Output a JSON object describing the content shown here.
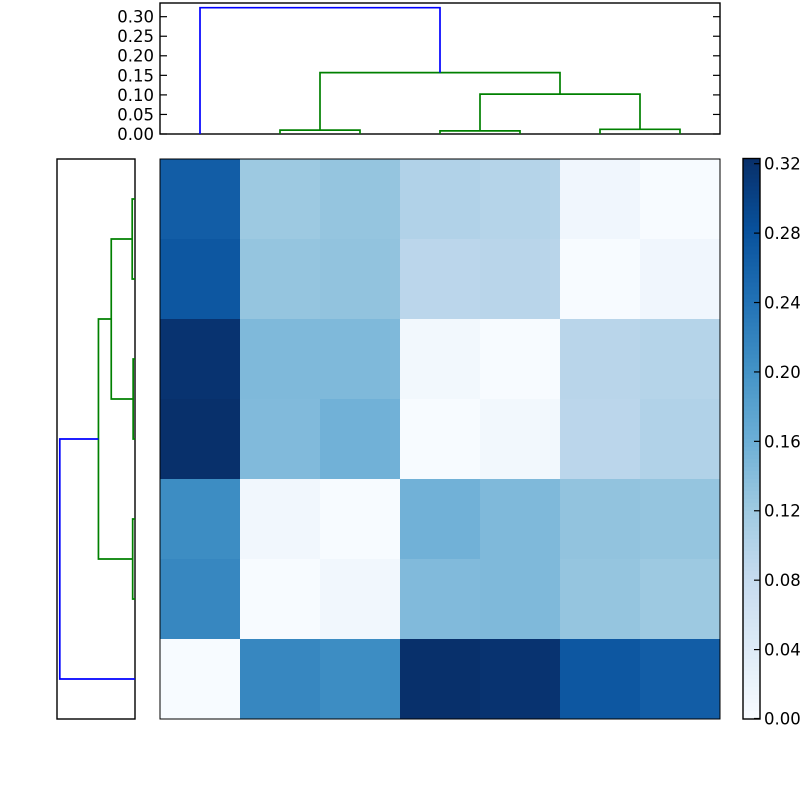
{
  "figure": {
    "title": "",
    "background_color": "#ffffff"
  },
  "chart_data": {
    "type": "heatmap",
    "subtype": "clustermap-with-dendrograms",
    "grid": "off",
    "colormap": "Blues",
    "colormap_stops": [
      [
        0.0,
        "#f7fbff"
      ],
      [
        0.125,
        "#deebf7"
      ],
      [
        0.25,
        "#c6dbef"
      ],
      [
        0.375,
        "#9ecae1"
      ],
      [
        0.5,
        "#6baed6"
      ],
      [
        0.625,
        "#4292c6"
      ],
      [
        0.75,
        "#2171b5"
      ],
      [
        0.875,
        "#08519c"
      ],
      [
        1.0,
        "#08306b"
      ]
    ],
    "vmin": 0.0,
    "vmax": 0.323,
    "n_rows": 7,
    "n_cols": 7,
    "matrix_rows_top_to_bottom": [
      [
        0.267,
        0.122,
        0.128,
        0.102,
        0.098,
        0.012,
        0.0
      ],
      [
        0.275,
        0.128,
        0.131,
        0.092,
        0.094,
        0.0,
        0.012
      ],
      [
        0.319,
        0.146,
        0.146,
        0.008,
        0.0,
        0.094,
        0.098
      ],
      [
        0.323,
        0.144,
        0.157,
        0.0,
        0.008,
        0.092,
        0.102
      ],
      [
        0.208,
        0.01,
        0.0,
        0.157,
        0.146,
        0.131,
        0.128
      ],
      [
        0.215,
        0.0,
        0.01,
        0.144,
        0.146,
        0.128,
        0.122
      ],
      [
        0.0,
        0.215,
        0.208,
        0.323,
        0.319,
        0.275,
        0.267
      ]
    ],
    "top_dendrogram": {
      "orientation": "top",
      "leaf_count": 7,
      "value_axis_ticks": [
        "0.00",
        "0.05",
        "0.10",
        "0.15",
        "0.20",
        "0.25",
        "0.30"
      ],
      "value_axis_tick_values": [
        0.0,
        0.05,
        0.1,
        0.15,
        0.2,
        0.25,
        0.3
      ],
      "value_axis_max": 0.335,
      "merges": [
        [
          1,
          2,
          0.01
        ],
        [
          3,
          4,
          0.008
        ],
        [
          5,
          6,
          0.012
        ],
        [
          8,
          9,
          0.102
        ],
        [
          7,
          10,
          0.157
        ],
        [
          0,
          11,
          0.323
        ]
      ],
      "link_colors": [
        "#008000",
        "#008000",
        "#008000",
        "#008000",
        "#008000",
        "#0000ff"
      ]
    },
    "left_dendrogram": {
      "orientation": "left",
      "leaf_count": 7,
      "value_axis_max": 0.335,
      "merges": [
        [
          0,
          1,
          0.012
        ],
        [
          2,
          3,
          0.008
        ],
        [
          7,
          8,
          0.102
        ],
        [
          4,
          5,
          0.01
        ],
        [
          9,
          10,
          0.157
        ],
        [
          11,
          6,
          0.323
        ]
      ],
      "link_colors": [
        "#008000",
        "#008000",
        "#008000",
        "#008000",
        "#008000",
        "#0000ff"
      ]
    },
    "colorbar": {
      "position": "right",
      "tick_labels": [
        "0.00",
        "0.04",
        "0.08",
        "0.12",
        "0.16",
        "0.20",
        "0.24",
        "0.28",
        "0.32"
      ],
      "tick_values": [
        0.0,
        0.04,
        0.08,
        0.12,
        0.16,
        0.2,
        0.24,
        0.28,
        0.32
      ],
      "min": 0.0,
      "max": 0.323
    },
    "style": {
      "axes_edge_color": "#000000",
      "tick_color": "#000000",
      "text_color": "#000000",
      "link_line_width": 1.7,
      "frame_line_width": 1.4
    }
  }
}
